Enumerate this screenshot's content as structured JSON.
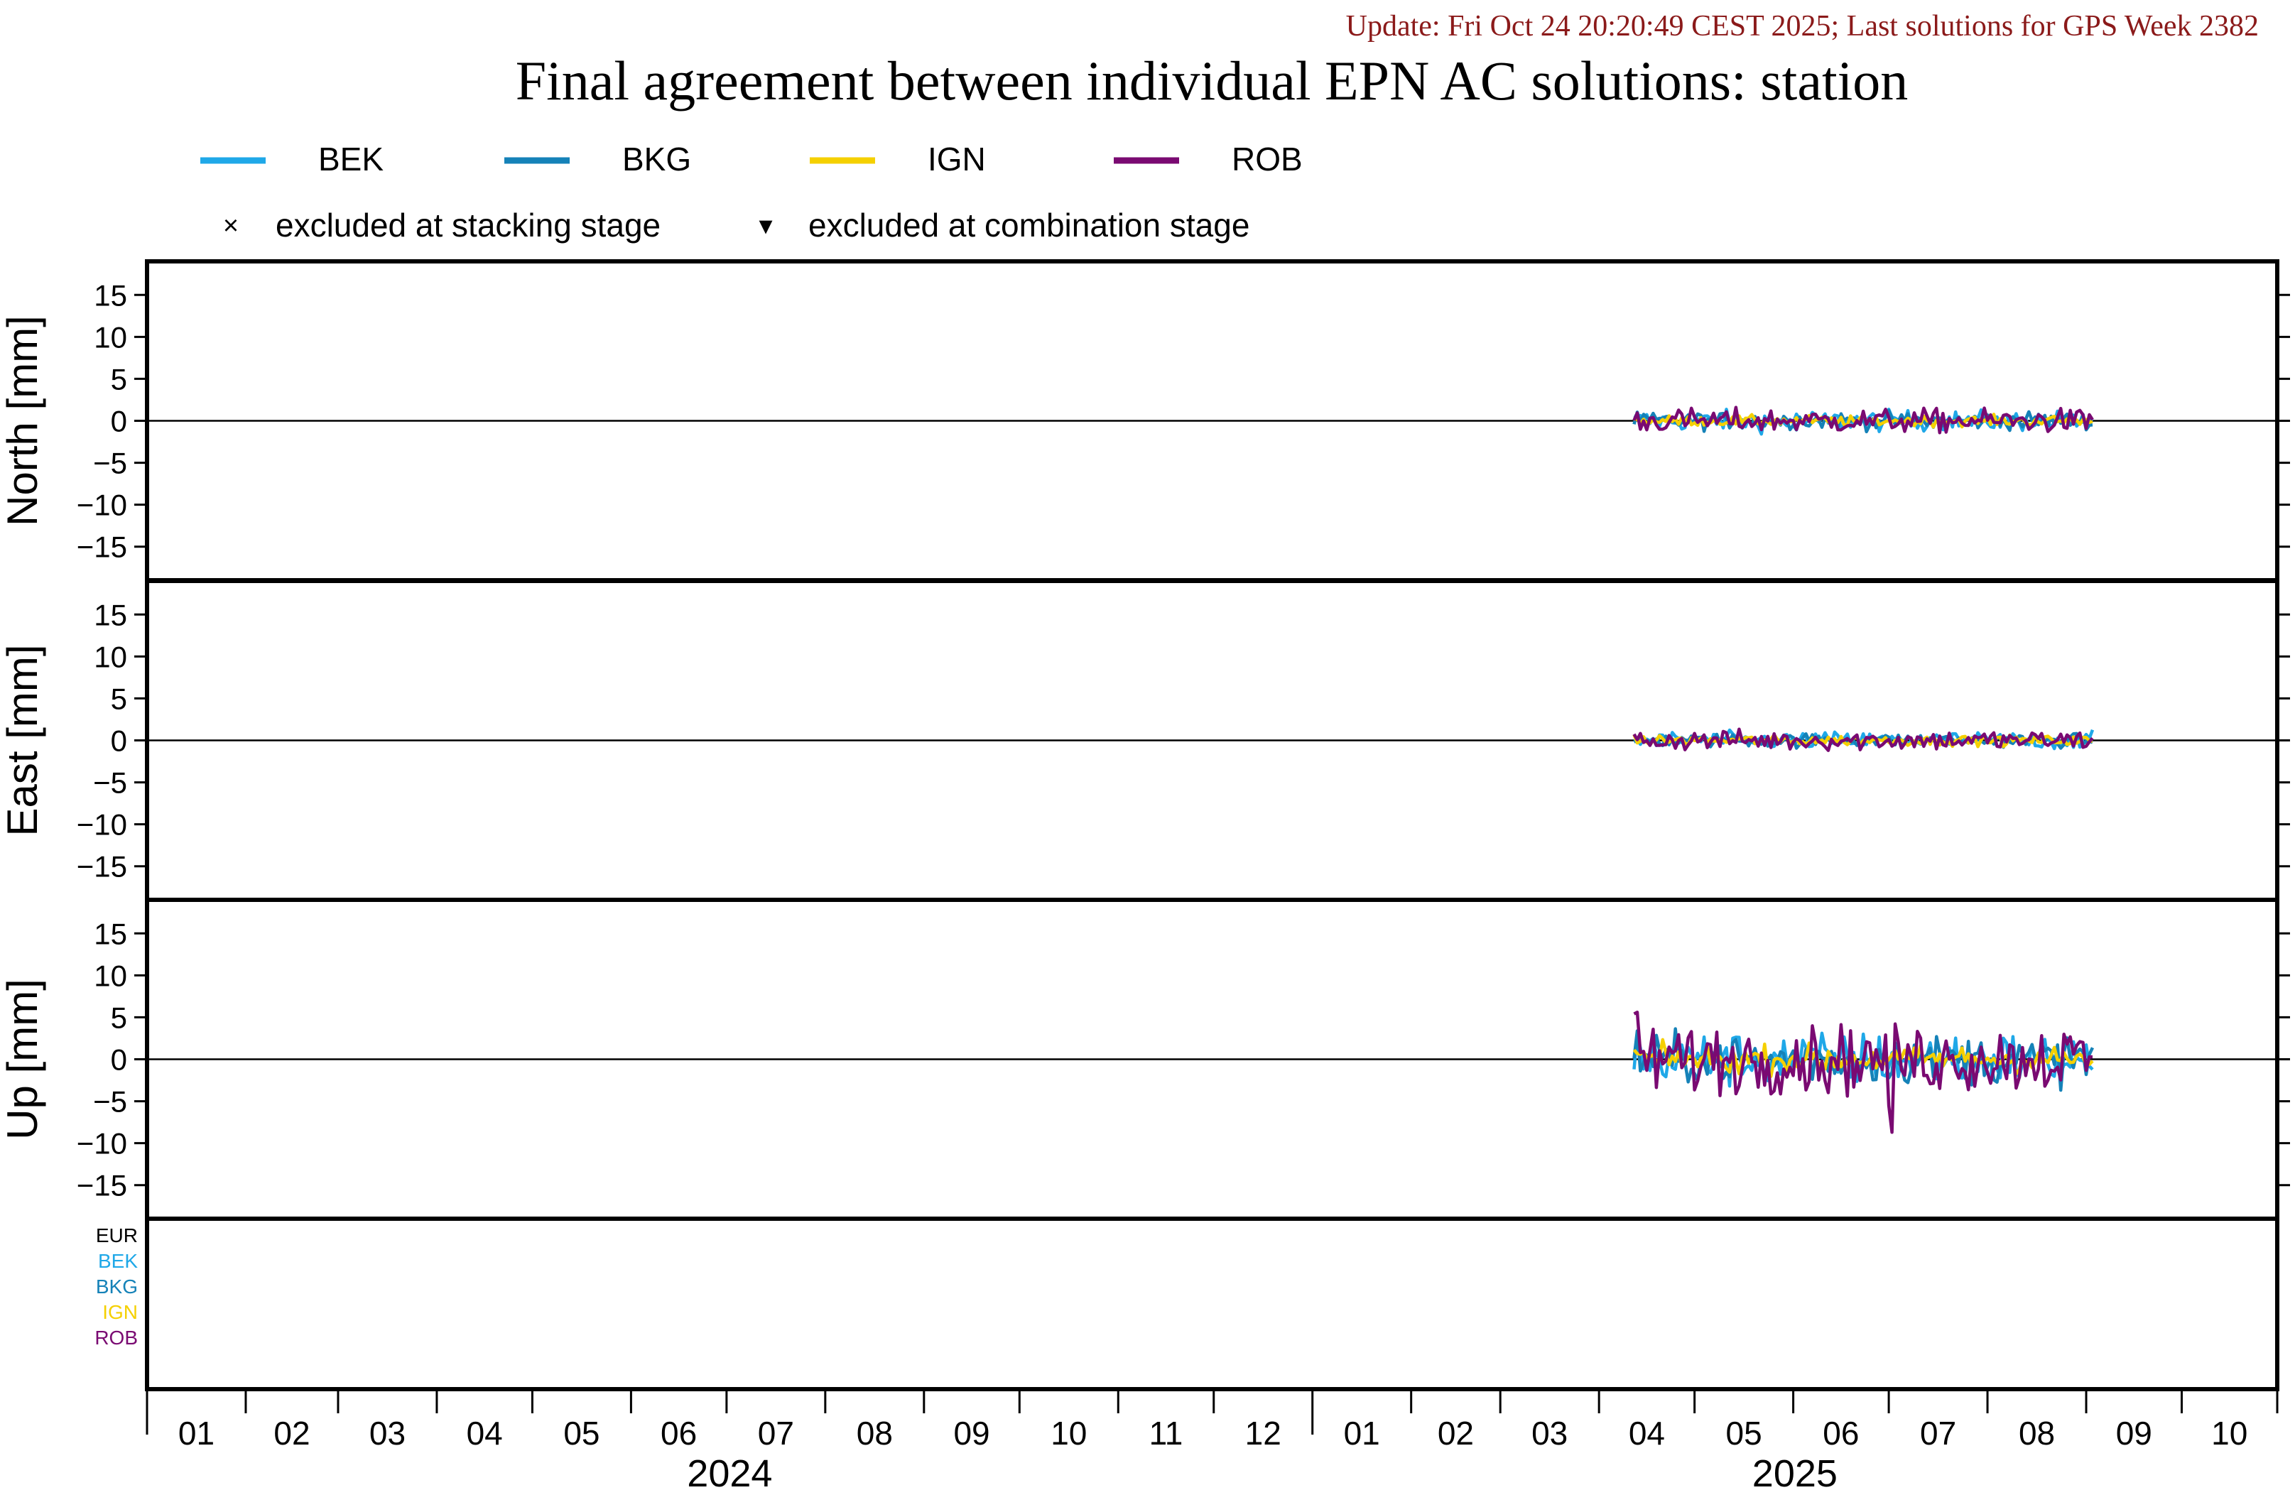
{
  "header": {
    "update_text": "Update: Fri Oct 24 20:20:49 CEST 2025; Last solutions for GPS Week 2382",
    "title": "Final agreement between individual EPN AC solutions: station"
  },
  "colors": {
    "update_text": "#8b1a1a",
    "BEK": "#1fa8e8",
    "BKG": "#1582b8",
    "IGN": "#f5d000",
    "ROB": "#7a0a72",
    "EUR": "#000000"
  },
  "legend": {
    "series": [
      {
        "name": "BEK",
        "color": "#1fa8e8"
      },
      {
        "name": "BKG",
        "color": "#1582b8"
      },
      {
        "name": "IGN",
        "color": "#f5d000"
      },
      {
        "name": "ROB",
        "color": "#7a0a72"
      }
    ],
    "markers": [
      {
        "symbol": "×",
        "label": "excluded at stacking stage"
      },
      {
        "symbol": "▾",
        "label": "excluded at combination stage"
      }
    ]
  },
  "chart_data": {
    "type": "line",
    "x_range": [
      "2024-01-01",
      "2025-10-31"
    ],
    "x_month_labels": [
      "01",
      "02",
      "03",
      "04",
      "05",
      "06",
      "07",
      "08",
      "09",
      "10",
      "11",
      "12",
      "01",
      "02",
      "03",
      "04",
      "05",
      "06",
      "07",
      "08",
      "09",
      "10"
    ],
    "x_year_labels": [
      "2024",
      "2025"
    ],
    "panels": [
      {
        "ylabel": "North [mm]",
        "ylim": [
          -19,
          19
        ],
        "yticks": [
          15,
          10,
          5,
          0,
          -5,
          -10,
          -15
        ],
        "tick_labels": [
          "15",
          "10",
          "5",
          "0",
          "−5",
          "−10",
          "−15"
        ],
        "amplitude_mm": {
          "BEK": 0.6,
          "BKG": 0.5,
          "IGN": 0.3,
          "ROB": 0.7
        }
      },
      {
        "ylabel": "East [mm]",
        "ylim": [
          -19,
          19
        ],
        "yticks": [
          15,
          10,
          5,
          0,
          -5,
          -10,
          -15
        ],
        "tick_labels": [
          "15",
          "10",
          "5",
          "0",
          "−5",
          "−10",
          "−15"
        ],
        "amplitude_mm": {
          "BEK": 0.5,
          "BKG": 0.4,
          "IGN": 0.3,
          "ROB": 0.6
        }
      },
      {
        "ylabel": "Up [mm]",
        "ylim": [
          -19,
          19
        ],
        "yticks": [
          15,
          10,
          5,
          0,
          -5,
          -10,
          -15
        ],
        "tick_labels": [
          "15",
          "10",
          "5",
          "0",
          "−5",
          "−10",
          "−15"
        ],
        "amplitude_mm": {
          "BEK": 1.6,
          "BKG": 1.4,
          "IGN": 0.8,
          "ROB": 2.0
        }
      }
    ],
    "series": [
      {
        "name": "BEK"
      },
      {
        "name": "BKG"
      },
      {
        "name": "IGN"
      },
      {
        "name": "ROB"
      }
    ],
    "data_start": "2025-04-12",
    "data_end": "2025-09-03",
    "up_spike": {
      "date": "2025-07-02",
      "value": -8.7,
      "series": "ROB"
    },
    "availability_labels": [
      {
        "name": "EUR",
        "color": "#000000"
      },
      {
        "name": "BEK",
        "color": "#1fa8e8"
      },
      {
        "name": "BKG",
        "color": "#1582b8"
      },
      {
        "name": "IGN",
        "color": "#f5d000"
      },
      {
        "name": "ROB",
        "color": "#7a0a72"
      }
    ]
  }
}
